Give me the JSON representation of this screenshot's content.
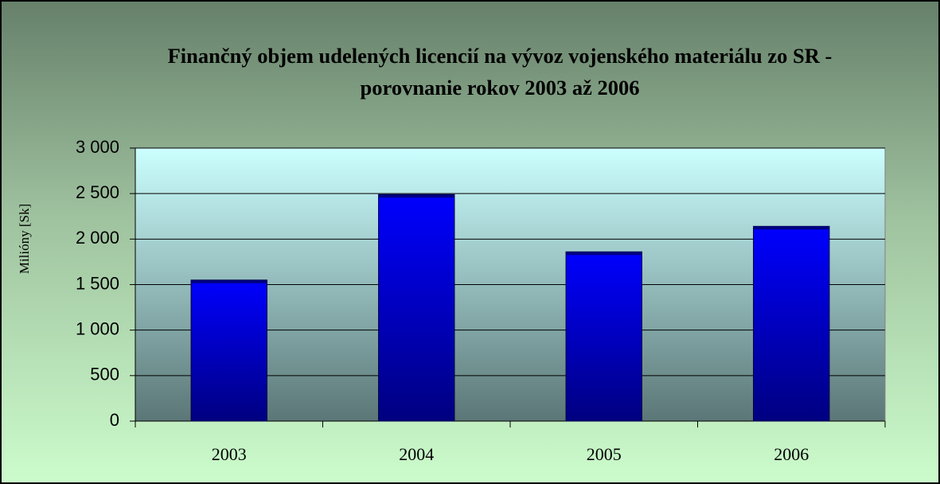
{
  "chart_data": {
    "type": "bar",
    "title": "Finančný objem udelených licencií na vývoz vojenského materiálu zo SR - porovnanie rokov 2003 až 2006",
    "ylabel": "Milióny [Sk]",
    "categories": [
      "2003",
      "2004",
      "2005",
      "2006"
    ],
    "values": [
      1550,
      2490,
      1860,
      2140
    ],
    "color": "#0000ff",
    "ylim": [
      0,
      3000
    ],
    "yticks": [
      0,
      500,
      {
        "value": 1000,
        "label": "1 000"
      },
      {
        "value": 1500,
        "label": "1 500"
      },
      {
        "value": 2000,
        "label": "2 000"
      },
      {
        "value": 2500,
        "label": "2 500"
      },
      {
        "value": 3000,
        "label": "3 000"
      }
    ],
    "grid": true
  }
}
